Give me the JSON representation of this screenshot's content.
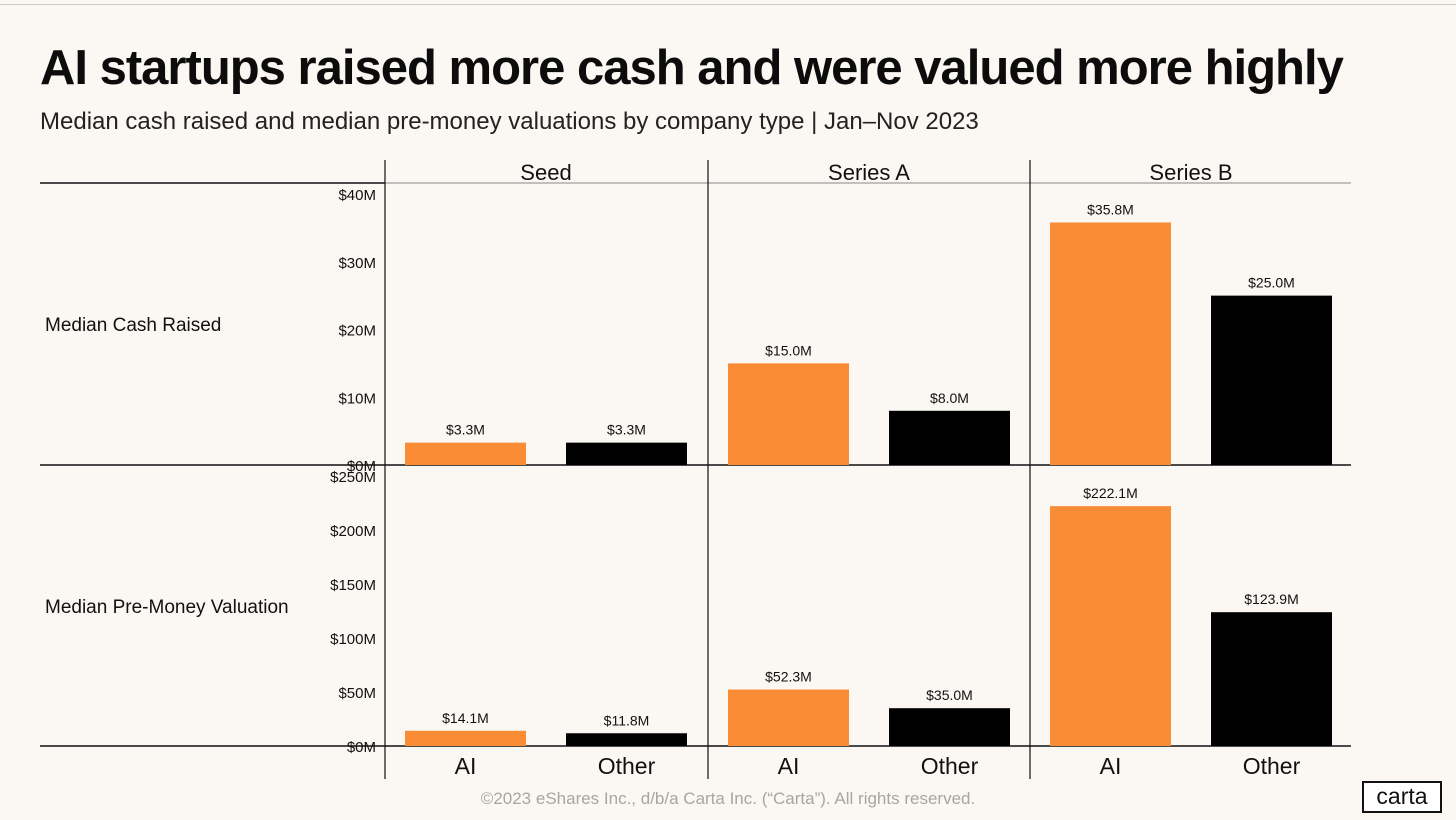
{
  "title": "AI startups raised more cash and were valued more highly",
  "subtitle": "Median cash raised and median pre-money valuations by company type | Jan–Nov 2023",
  "footer": "©2023 eShares Inc., d/b/a Carta Inc. (“Carta”). All rights reserved.",
  "logo_text": "carta",
  "colors": {
    "ai": "#fb8c36",
    "other": "#000000",
    "background": "#fbf8f4"
  },
  "chart_data": {
    "type": "bar",
    "stages": [
      "Seed",
      "Series A",
      "Series B"
    ],
    "categories": [
      "AI",
      "Other"
    ],
    "legend": "none",
    "grid": false,
    "panels": [
      {
        "metric": "Median Cash Raised",
        "unit": "$M",
        "ylim": [
          0,
          40
        ],
        "ticks": [
          0,
          10,
          20,
          30,
          40
        ],
        "tick_labels": [
          "$0M",
          "$10M",
          "$20M",
          "$30M",
          "$40M"
        ],
        "values": {
          "AI": [
            3.3,
            15.0,
            35.8
          ],
          "Other": [
            3.3,
            8.0,
            25.0
          ]
        },
        "labels": {
          "AI": [
            "$3.3M",
            "$15.0M",
            "$35.8M"
          ],
          "Other": [
            "$3.3M",
            "$8.0M",
            "$25.0M"
          ]
        }
      },
      {
        "metric": "Median Pre-Money Valuation",
        "unit": "$M",
        "ylim": [
          0,
          250
        ],
        "ticks": [
          0,
          50,
          100,
          150,
          200,
          250
        ],
        "tick_labels": [
          "$0M",
          "$50M",
          "$100M",
          "$150M",
          "$200M",
          "$250M"
        ],
        "values": {
          "AI": [
            14.1,
            52.3,
            222.1
          ],
          "Other": [
            11.8,
            35.0,
            123.9
          ]
        },
        "labels": {
          "AI": [
            "$14.1M",
            "$52.3M",
            "$222.1M"
          ],
          "Other": [
            "$11.8M",
            "$35.0M",
            "$123.9M"
          ]
        }
      }
    ]
  }
}
